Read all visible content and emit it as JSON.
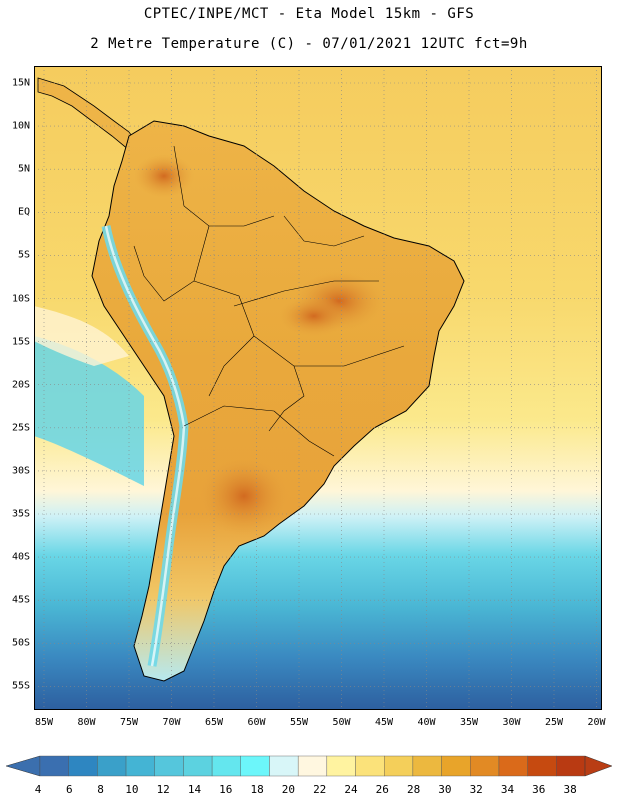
{
  "header": {
    "line1": "CPTEC/INPE/MCT -  Eta Model 15km - GFS",
    "line2": "2 Metre Temperature (C) - 07/01/2021 12UTC fct=9h"
  },
  "map": {
    "latitude_labels": [
      "15N",
      "10N",
      "5N",
      "EQ",
      "5S",
      "10S",
      "15S",
      "20S",
      "25S",
      "30S",
      "35S",
      "40S",
      "45S",
      "50S",
      "55S"
    ],
    "longitude_labels": [
      "85W",
      "80W",
      "75W",
      "70W",
      "65W",
      "60W",
      "55W",
      "50W",
      "45W",
      "40W",
      "35W",
      "30W",
      "25W",
      "20W"
    ],
    "colors": {
      "ocean_warm": "#f7d36a",
      "ocean_mid": "#fbe98a",
      "land_hot": "#e6a43a",
      "land_hotter": "#d9782a",
      "cold_band": "#5cc8dc",
      "deep_cold": "#2f64a2"
    }
  },
  "colorbar": {
    "labels": [
      "4",
      "6",
      "8",
      "10",
      "12",
      "14",
      "16",
      "18",
      "20",
      "22",
      "24",
      "26",
      "28",
      "30",
      "32",
      "34",
      "36",
      "38"
    ],
    "colors": [
      "#3a6fb0",
      "#2e86c1",
      "#3aa0c9",
      "#44b4d4",
      "#55c6dc",
      "#5cd2e0",
      "#64e6ee",
      "#6cf6fa",
      "#d8f6f8",
      "#fff7e0",
      "#fff3a0",
      "#fbe27a",
      "#f4cf5a",
      "#ecb83f",
      "#e8a42a",
      "#e28a24",
      "#da6a1a",
      "#c64a10",
      "#b93a12"
    ],
    "left_arrow": "#3b6fae",
    "right_arrow": "#b93d14"
  }
}
